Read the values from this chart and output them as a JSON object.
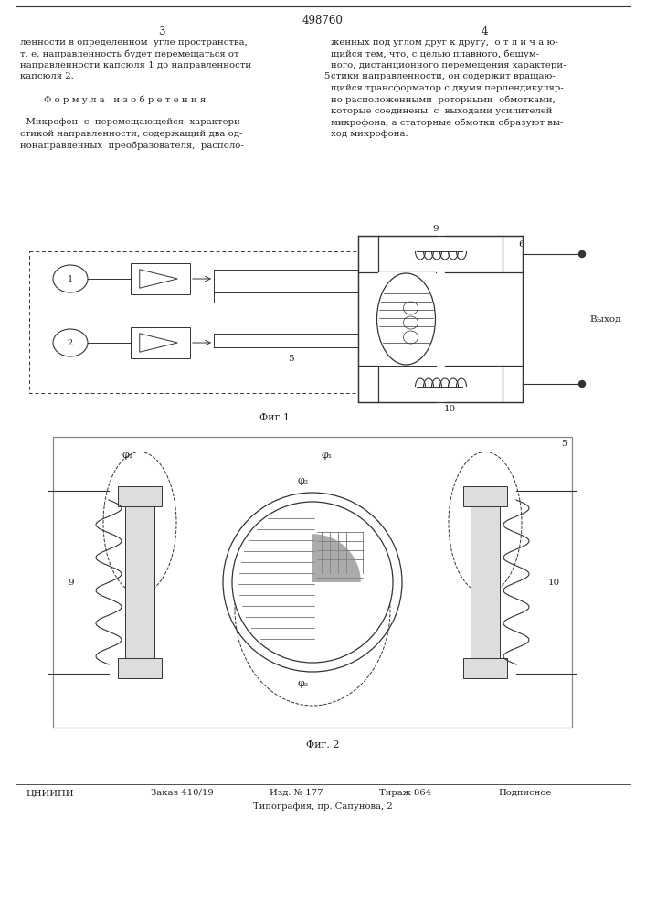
{
  "patent_number": "498760",
  "col1_lines": [
    "ленности в определенном  угле пространства,",
    "т. е. направленность будет перемещаться от",
    "направленности капсюля 1 до направленности",
    "капсюля 2.",
    "",
    "        Ф о р м у л а   и з о б р е т е н и я",
    "",
    "  Микрофон  с  перемещающейся  характери-",
    "стикой направленности, содержащий два од-",
    "нонаправленных  преобразователя,  располо-"
  ],
  "col2_lines": [
    "женных под углом друг к другу,  о т л и ч а ю-",
    "щийся тем, что, с целью плавного, бешум-",
    "ного, дистанционного перемещения характери-",
    "стики направленности, он содержит вращаю-",
    "щийся трансформатор с двумя перпендикуляр-",
    "но расположенными  роторными  обмотками,",
    "которые соединены  с  выходами усилителей",
    "микрофона, а статорные обмотки образуют вы-",
    "ход микрофона."
  ],
  "fig1_caption": "Фиг 1",
  "fig2_caption": "Фиг. 2",
  "footer_left": "ЦНИИПИ",
  "footer_order": "Заказ 410/19",
  "footer_izd": "Изд. № 177",
  "footer_tirazh": "Тираж 864",
  "footer_type": "Подписное",
  "footer_typography": "Типография, пр. Сапунова, 2",
  "bg_color": "#ffffff",
  "text_color": "#222222",
  "line_color": "#333333"
}
